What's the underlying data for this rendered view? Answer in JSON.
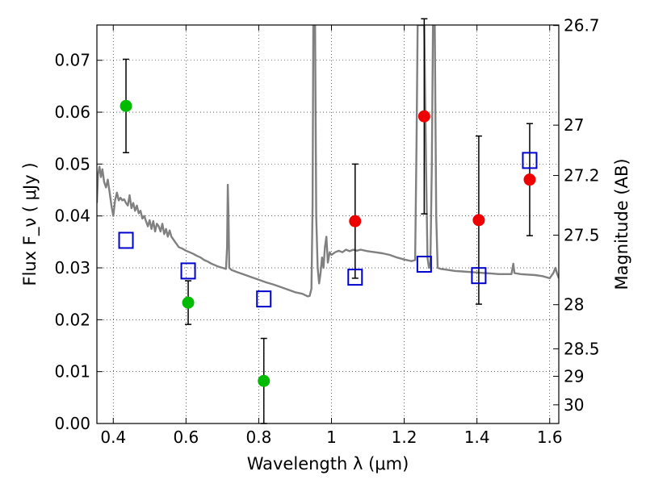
{
  "chart_data": {
    "type": "scatter",
    "xlabel": "Wavelength  λ (μm)",
    "ylabel": "Flux  F_ν  ( μJy )",
    "ylabel_right": "Magnitude (AB)",
    "xlim": [
      0.355,
      1.625
    ],
    "ylim": [
      0.0,
      0.0768
    ],
    "grid": true,
    "x_ticks": [
      0.4,
      0.6,
      0.8,
      1.0,
      1.2,
      1.4,
      1.6
    ],
    "x_tick_labels": [
      "0.4",
      "0.6",
      "0.8",
      "1",
      "1.2",
      "1.4",
      "1.6"
    ],
    "y_ticks": [
      0.0,
      0.01,
      0.02,
      0.03,
      0.04,
      0.05,
      0.06,
      0.07
    ],
    "y_tick_labels": [
      "0.00",
      "0.01",
      "0.02",
      "0.03",
      "0.04",
      "0.05",
      "0.06",
      "0.07"
    ],
    "right_axis_ticks": [
      {
        "label": "26.7",
        "flux": 0.0767
      },
      {
        "label": "27",
        "flux": 0.0575
      },
      {
        "label": "27.2",
        "flux": 0.0478
      },
      {
        "label": "27.5",
        "flux": 0.0363
      },
      {
        "label": "28",
        "flux": 0.0229
      },
      {
        "label": "28.5",
        "flux": 0.0144
      },
      {
        "label": "29",
        "flux": 0.0091
      },
      {
        "label": "30",
        "flux": 0.0036
      }
    ],
    "series": [
      {
        "color": "#00bb00",
        "marker": "filled-circle",
        "points": [
          {
            "x": 0.435,
            "y": 0.0612,
            "err_low": 0.009,
            "err_high": 0.009
          },
          {
            "x": 0.606,
            "y": 0.0233,
            "err_low": 0.0042,
            "err_high": 0.0042
          },
          {
            "x": 0.814,
            "y": 0.0082,
            "err_low": 0.0082,
            "err_high": 0.0082
          }
        ]
      },
      {
        "color": "#ee0000",
        "marker": "filled-circle",
        "points": [
          {
            "x": 1.065,
            "y": 0.039,
            "err_low": 0.011,
            "err_high": 0.011
          },
          {
            "x": 1.255,
            "y": 0.0592,
            "err_low": 0.0188,
            "err_high": 0.0188
          },
          {
            "x": 1.405,
            "y": 0.0392,
            "err_low": 0.0162,
            "err_high": 0.0162
          },
          {
            "x": 1.545,
            "y": 0.047,
            "err_low": 0.0108,
            "err_high": 0.0108
          }
        ]
      },
      {
        "color": "#0000cc",
        "marker": "open-square",
        "points": [
          {
            "x": 0.435,
            "y": 0.0353
          },
          {
            "x": 0.606,
            "y": 0.0294
          },
          {
            "x": 0.814,
            "y": 0.024
          },
          {
            "x": 1.065,
            "y": 0.0282
          },
          {
            "x": 1.255,
            "y": 0.0307
          },
          {
            "x": 1.405,
            "y": 0.0285
          },
          {
            "x": 1.545,
            "y": 0.0507
          }
        ]
      },
      {
        "color": "#808080",
        "marker": "line",
        "points": [
          [
            0.355,
            0.0425
          ],
          [
            0.358,
            0.048
          ],
          [
            0.362,
            0.0495
          ],
          [
            0.366,
            0.0475
          ],
          [
            0.37,
            0.049
          ],
          [
            0.375,
            0.0465
          ],
          [
            0.38,
            0.0455
          ],
          [
            0.385,
            0.047
          ],
          [
            0.39,
            0.0445
          ],
          [
            0.395,
            0.042
          ],
          [
            0.4,
            0.04
          ],
          [
            0.405,
            0.043
          ],
          [
            0.41,
            0.0445
          ],
          [
            0.415,
            0.043
          ],
          [
            0.42,
            0.0435
          ],
          [
            0.425,
            0.043
          ],
          [
            0.43,
            0.0432
          ],
          [
            0.435,
            0.0425
          ],
          [
            0.44,
            0.042
          ],
          [
            0.445,
            0.044
          ],
          [
            0.45,
            0.0415
          ],
          [
            0.455,
            0.0425
          ],
          [
            0.46,
            0.041
          ],
          [
            0.465,
            0.042
          ],
          [
            0.47,
            0.0405
          ],
          [
            0.475,
            0.041
          ],
          [
            0.48,
            0.0395
          ],
          [
            0.485,
            0.04
          ],
          [
            0.49,
            0.039
          ],
          [
            0.495,
            0.038
          ],
          [
            0.5,
            0.0392
          ],
          [
            0.505,
            0.0375
          ],
          [
            0.51,
            0.039
          ],
          [
            0.515,
            0.037
          ],
          [
            0.52,
            0.0385
          ],
          [
            0.525,
            0.038
          ],
          [
            0.53,
            0.037
          ],
          [
            0.535,
            0.0385
          ],
          [
            0.54,
            0.0365
          ],
          [
            0.545,
            0.0375
          ],
          [
            0.55,
            0.036
          ],
          [
            0.555,
            0.0372
          ],
          [
            0.56,
            0.036
          ],
          [
            0.565,
            0.0355
          ],
          [
            0.57,
            0.035
          ],
          [
            0.575,
            0.0345
          ],
          [
            0.58,
            0.034
          ],
          [
            0.59,
            0.0337
          ],
          [
            0.6,
            0.0333
          ],
          [
            0.61,
            0.033
          ],
          [
            0.62,
            0.0327
          ],
          [
            0.63,
            0.0323
          ],
          [
            0.64,
            0.032
          ],
          [
            0.65,
            0.0315
          ],
          [
            0.66,
            0.0312
          ],
          [
            0.67,
            0.0308
          ],
          [
            0.68,
            0.0305
          ],
          [
            0.69,
            0.0302
          ],
          [
            0.7,
            0.03
          ],
          [
            0.71,
            0.0298
          ],
          [
            0.713,
            0.034
          ],
          [
            0.715,
            0.046
          ],
          [
            0.717,
            0.04
          ],
          [
            0.719,
            0.03
          ],
          [
            0.725,
            0.0296
          ],
          [
            0.74,
            0.0292
          ],
          [
            0.76,
            0.0287
          ],
          [
            0.78,
            0.0282
          ],
          [
            0.8,
            0.0277
          ],
          [
            0.82,
            0.0272
          ],
          [
            0.84,
            0.0268
          ],
          [
            0.86,
            0.0263
          ],
          [
            0.88,
            0.0258
          ],
          [
            0.9,
            0.0253
          ],
          [
            0.92,
            0.025
          ],
          [
            0.935,
            0.0245
          ],
          [
            0.94,
            0.0246
          ],
          [
            0.945,
            0.026
          ],
          [
            0.948,
            0.042
          ],
          [
            0.95,
            0.0768
          ],
          [
            0.955,
            0.0768
          ],
          [
            0.958,
            0.04
          ],
          [
            0.962,
            0.03
          ],
          [
            0.966,
            0.027
          ],
          [
            0.97,
            0.029
          ],
          [
            0.974,
            0.032
          ],
          [
            0.978,
            0.03
          ],
          [
            0.982,
            0.034
          ],
          [
            0.986,
            0.036
          ],
          [
            0.99,
            0.031
          ],
          [
            0.995,
            0.033
          ],
          [
            1.0,
            0.0325
          ],
          [
            1.01,
            0.033
          ],
          [
            1.02,
            0.0333
          ],
          [
            1.03,
            0.033
          ],
          [
            1.04,
            0.0335
          ],
          [
            1.05,
            0.0332
          ],
          [
            1.06,
            0.0335
          ],
          [
            1.07,
            0.0333
          ],
          [
            1.08,
            0.0335
          ],
          [
            1.1,
            0.0332
          ],
          [
            1.12,
            0.033
          ],
          [
            1.14,
            0.0328
          ],
          [
            1.16,
            0.0325
          ],
          [
            1.18,
            0.032
          ],
          [
            1.2,
            0.0316
          ],
          [
            1.22,
            0.0313
          ],
          [
            1.23,
            0.0315
          ],
          [
            1.234,
            0.055
          ],
          [
            1.237,
            0.0768
          ],
          [
            1.255,
            0.0768
          ],
          [
            1.26,
            0.05
          ],
          [
            1.264,
            0.032
          ],
          [
            1.268,
            0.03
          ],
          [
            1.272,
            0.031
          ],
          [
            1.276,
            0.05
          ],
          [
            1.279,
            0.0768
          ],
          [
            1.284,
            0.0768
          ],
          [
            1.288,
            0.04
          ],
          [
            1.292,
            0.03
          ],
          [
            1.3,
            0.0298
          ],
          [
            1.32,
            0.0296
          ],
          [
            1.34,
            0.0294
          ],
          [
            1.36,
            0.0293
          ],
          [
            1.38,
            0.0292
          ],
          [
            1.4,
            0.0291
          ],
          [
            1.42,
            0.029
          ],
          [
            1.44,
            0.0289
          ],
          [
            1.46,
            0.0288
          ],
          [
            1.48,
            0.0288
          ],
          [
            1.495,
            0.0288
          ],
          [
            1.5,
            0.0308
          ],
          [
            1.503,
            0.029
          ],
          [
            1.52,
            0.0288
          ],
          [
            1.54,
            0.0287
          ],
          [
            1.56,
            0.0286
          ],
          [
            1.58,
            0.0284
          ],
          [
            1.6,
            0.028
          ],
          [
            1.61,
            0.029
          ],
          [
            1.616,
            0.03
          ],
          [
            1.62,
            0.029
          ],
          [
            1.625,
            0.028
          ]
        ]
      }
    ]
  }
}
